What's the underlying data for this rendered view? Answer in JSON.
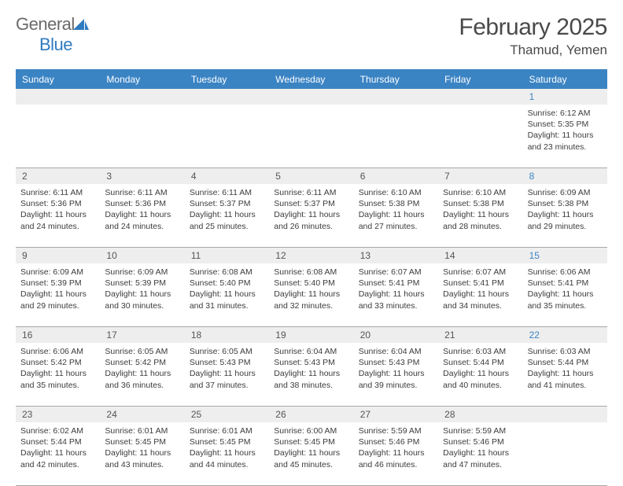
{
  "logo": {
    "word1": "General",
    "word2": "Blue"
  },
  "title": "February 2025",
  "location": "Thamud, Yemen",
  "colors": {
    "header_bg": "#3b84c4",
    "header_text": "#ffffff",
    "daynum_bg": "#eeeeee",
    "saturday_color": "#3b84c4",
    "border_color": "#a8a8a8",
    "text_color": "#3c3c3c"
  },
  "days_of_week": [
    "Sunday",
    "Monday",
    "Tuesday",
    "Wednesday",
    "Thursday",
    "Friday",
    "Saturday"
  ],
  "weeks": [
    [
      null,
      null,
      null,
      null,
      null,
      null,
      {
        "n": "1",
        "sunrise": "6:12 AM",
        "sunset": "5:35 PM",
        "dl1": "Daylight: 11 hours",
        "dl2": "and 23 minutes."
      }
    ],
    [
      {
        "n": "2",
        "sunrise": "6:11 AM",
        "sunset": "5:36 PM",
        "dl1": "Daylight: 11 hours",
        "dl2": "and 24 minutes."
      },
      {
        "n": "3",
        "sunrise": "6:11 AM",
        "sunset": "5:36 PM",
        "dl1": "Daylight: 11 hours",
        "dl2": "and 24 minutes."
      },
      {
        "n": "4",
        "sunrise": "6:11 AM",
        "sunset": "5:37 PM",
        "dl1": "Daylight: 11 hours",
        "dl2": "and 25 minutes."
      },
      {
        "n": "5",
        "sunrise": "6:11 AM",
        "sunset": "5:37 PM",
        "dl1": "Daylight: 11 hours",
        "dl2": "and 26 minutes."
      },
      {
        "n": "6",
        "sunrise": "6:10 AM",
        "sunset": "5:38 PM",
        "dl1": "Daylight: 11 hours",
        "dl2": "and 27 minutes."
      },
      {
        "n": "7",
        "sunrise": "6:10 AM",
        "sunset": "5:38 PM",
        "dl1": "Daylight: 11 hours",
        "dl2": "and 28 minutes."
      },
      {
        "n": "8",
        "sunrise": "6:09 AM",
        "sunset": "5:38 PM",
        "dl1": "Daylight: 11 hours",
        "dl2": "and 29 minutes."
      }
    ],
    [
      {
        "n": "9",
        "sunrise": "6:09 AM",
        "sunset": "5:39 PM",
        "dl1": "Daylight: 11 hours",
        "dl2": "and 29 minutes."
      },
      {
        "n": "10",
        "sunrise": "6:09 AM",
        "sunset": "5:39 PM",
        "dl1": "Daylight: 11 hours",
        "dl2": "and 30 minutes."
      },
      {
        "n": "11",
        "sunrise": "6:08 AM",
        "sunset": "5:40 PM",
        "dl1": "Daylight: 11 hours",
        "dl2": "and 31 minutes."
      },
      {
        "n": "12",
        "sunrise": "6:08 AM",
        "sunset": "5:40 PM",
        "dl1": "Daylight: 11 hours",
        "dl2": "and 32 minutes."
      },
      {
        "n": "13",
        "sunrise": "6:07 AM",
        "sunset": "5:41 PM",
        "dl1": "Daylight: 11 hours",
        "dl2": "and 33 minutes."
      },
      {
        "n": "14",
        "sunrise": "6:07 AM",
        "sunset": "5:41 PM",
        "dl1": "Daylight: 11 hours",
        "dl2": "and 34 minutes."
      },
      {
        "n": "15",
        "sunrise": "6:06 AM",
        "sunset": "5:41 PM",
        "dl1": "Daylight: 11 hours",
        "dl2": "and 35 minutes."
      }
    ],
    [
      {
        "n": "16",
        "sunrise": "6:06 AM",
        "sunset": "5:42 PM",
        "dl1": "Daylight: 11 hours",
        "dl2": "and 35 minutes."
      },
      {
        "n": "17",
        "sunrise": "6:05 AM",
        "sunset": "5:42 PM",
        "dl1": "Daylight: 11 hours",
        "dl2": "and 36 minutes."
      },
      {
        "n": "18",
        "sunrise": "6:05 AM",
        "sunset": "5:43 PM",
        "dl1": "Daylight: 11 hours",
        "dl2": "and 37 minutes."
      },
      {
        "n": "19",
        "sunrise": "6:04 AM",
        "sunset": "5:43 PM",
        "dl1": "Daylight: 11 hours",
        "dl2": "and 38 minutes."
      },
      {
        "n": "20",
        "sunrise": "6:04 AM",
        "sunset": "5:43 PM",
        "dl1": "Daylight: 11 hours",
        "dl2": "and 39 minutes."
      },
      {
        "n": "21",
        "sunrise": "6:03 AM",
        "sunset": "5:44 PM",
        "dl1": "Daylight: 11 hours",
        "dl2": "and 40 minutes."
      },
      {
        "n": "22",
        "sunrise": "6:03 AM",
        "sunset": "5:44 PM",
        "dl1": "Daylight: 11 hours",
        "dl2": "and 41 minutes."
      }
    ],
    [
      {
        "n": "23",
        "sunrise": "6:02 AM",
        "sunset": "5:44 PM",
        "dl1": "Daylight: 11 hours",
        "dl2": "and 42 minutes."
      },
      {
        "n": "24",
        "sunrise": "6:01 AM",
        "sunset": "5:45 PM",
        "dl1": "Daylight: 11 hours",
        "dl2": "and 43 minutes."
      },
      {
        "n": "25",
        "sunrise": "6:01 AM",
        "sunset": "5:45 PM",
        "dl1": "Daylight: 11 hours",
        "dl2": "and 44 minutes."
      },
      {
        "n": "26",
        "sunrise": "6:00 AM",
        "sunset": "5:45 PM",
        "dl1": "Daylight: 11 hours",
        "dl2": "and 45 minutes."
      },
      {
        "n": "27",
        "sunrise": "5:59 AM",
        "sunset": "5:46 PM",
        "dl1": "Daylight: 11 hours",
        "dl2": "and 46 minutes."
      },
      {
        "n": "28",
        "sunrise": "5:59 AM",
        "sunset": "5:46 PM",
        "dl1": "Daylight: 11 hours",
        "dl2": "and 47 minutes."
      },
      null
    ]
  ],
  "labels": {
    "sunrise": "Sunrise:",
    "sunset": "Sunset:"
  }
}
